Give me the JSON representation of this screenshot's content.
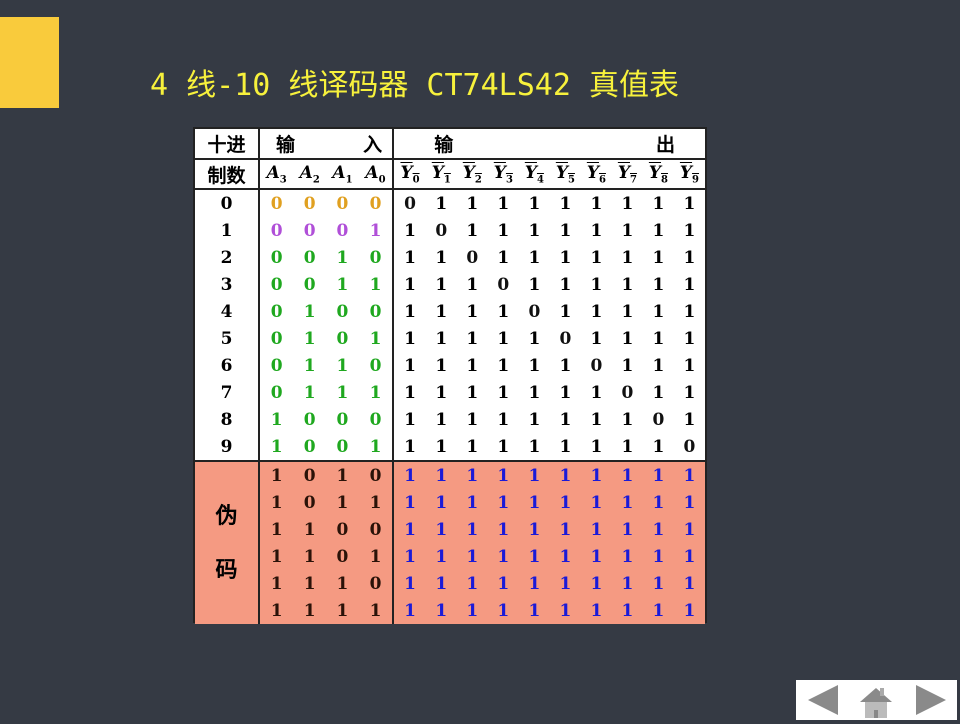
{
  "title": "4 线-10 线译码器 CT74LS42 真值表",
  "table": {
    "header_decimal_1": "十进",
    "header_decimal_2": "制数",
    "header_input_1": "输",
    "header_input_2": "入",
    "header_output_1": "输",
    "header_output_2": "出",
    "input_labels": [
      "A3",
      "A2",
      "A1",
      "A0"
    ],
    "output_labels": [
      "Y0",
      "Y1",
      "Y2",
      "Y3",
      "Y4",
      "Y5",
      "Y6",
      "Y7",
      "Y8",
      "Y9"
    ],
    "rows": [
      {
        "dec": "0",
        "in": [
          "0",
          "0",
          "0",
          "0"
        ],
        "out": [
          "0",
          "1",
          "1",
          "1",
          "1",
          "1",
          "1",
          "1",
          "1",
          "1"
        ],
        "color": "#e0a020"
      },
      {
        "dec": "1",
        "in": [
          "0",
          "0",
          "0",
          "1"
        ],
        "out": [
          "1",
          "0",
          "1",
          "1",
          "1",
          "1",
          "1",
          "1",
          "1",
          "1"
        ],
        "color": "#b04fd8"
      },
      {
        "dec": "2",
        "in": [
          "0",
          "0",
          "1",
          "0"
        ],
        "out": [
          "1",
          "1",
          "0",
          "1",
          "1",
          "1",
          "1",
          "1",
          "1",
          "1"
        ],
        "color": "#1fa81f"
      },
      {
        "dec": "3",
        "in": [
          "0",
          "0",
          "1",
          "1"
        ],
        "out": [
          "1",
          "1",
          "1",
          "0",
          "1",
          "1",
          "1",
          "1",
          "1",
          "1"
        ],
        "color": "#1fa81f"
      },
      {
        "dec": "4",
        "in": [
          "0",
          "1",
          "0",
          "0"
        ],
        "out": [
          "1",
          "1",
          "1",
          "1",
          "0",
          "1",
          "1",
          "1",
          "1",
          "1"
        ],
        "color": "#1fa81f"
      },
      {
        "dec": "5",
        "in": [
          "0",
          "1",
          "0",
          "1"
        ],
        "out": [
          "1",
          "1",
          "1",
          "1",
          "1",
          "0",
          "1",
          "1",
          "1",
          "1"
        ],
        "color": "#1fa81f"
      },
      {
        "dec": "6",
        "in": [
          "0",
          "1",
          "1",
          "0"
        ],
        "out": [
          "1",
          "1",
          "1",
          "1",
          "1",
          "1",
          "0",
          "1",
          "1",
          "1"
        ],
        "color": "#1fa81f"
      },
      {
        "dec": "7",
        "in": [
          "0",
          "1",
          "1",
          "1"
        ],
        "out": [
          "1",
          "1",
          "1",
          "1",
          "1",
          "1",
          "1",
          "0",
          "1",
          "1"
        ],
        "color": "#1fa81f"
      },
      {
        "dec": "8",
        "in": [
          "1",
          "0",
          "0",
          "0"
        ],
        "out": [
          "1",
          "1",
          "1",
          "1",
          "1",
          "1",
          "1",
          "1",
          "0",
          "1"
        ],
        "color": "#1fa81f"
      },
      {
        "dec": "9",
        "in": [
          "1",
          "0",
          "0",
          "1"
        ],
        "out": [
          "1",
          "1",
          "1",
          "1",
          "1",
          "1",
          "1",
          "1",
          "1",
          "0"
        ],
        "color": "#1fa81f"
      }
    ],
    "pseudo_label_1": "伪",
    "pseudo_label_2": "码",
    "pseudo_rows": [
      {
        "in": [
          "1",
          "0",
          "1",
          "0"
        ],
        "out": [
          "1",
          "1",
          "1",
          "1",
          "1",
          "1",
          "1",
          "1",
          "1",
          "1"
        ]
      },
      {
        "in": [
          "1",
          "0",
          "1",
          "1"
        ],
        "out": [
          "1",
          "1",
          "1",
          "1",
          "1",
          "1",
          "1",
          "1",
          "1",
          "1"
        ]
      },
      {
        "in": [
          "1",
          "1",
          "0",
          "0"
        ],
        "out": [
          "1",
          "1",
          "1",
          "1",
          "1",
          "1",
          "1",
          "1",
          "1",
          "1"
        ]
      },
      {
        "in": [
          "1",
          "1",
          "0",
          "1"
        ],
        "out": [
          "1",
          "1",
          "1",
          "1",
          "1",
          "1",
          "1",
          "1",
          "1",
          "1"
        ]
      },
      {
        "in": [
          "1",
          "1",
          "1",
          "0"
        ],
        "out": [
          "1",
          "1",
          "1",
          "1",
          "1",
          "1",
          "1",
          "1",
          "1",
          "1"
        ]
      },
      {
        "in": [
          "1",
          "1",
          "1",
          "1"
        ],
        "out": [
          "1",
          "1",
          "1",
          "1",
          "1",
          "1",
          "1",
          "1",
          "1",
          "1"
        ]
      }
    ],
    "pseudo_bg": "#f59a82"
  },
  "nav": {
    "prev_icon": "triangle-left-icon",
    "home_icon": "home-icon",
    "next_icon": "triangle-right-icon",
    "color": "#8a8a8a"
  },
  "colors": {
    "background": "#353a44",
    "accent": "#f9cb3c",
    "title": "#f7f13c"
  }
}
